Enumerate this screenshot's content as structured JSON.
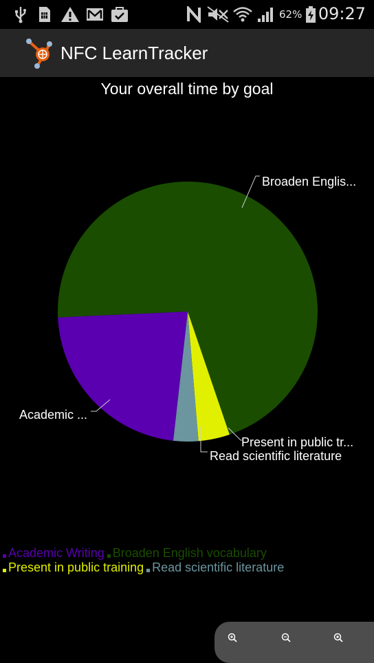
{
  "status_bar": {
    "battery_percent": "62%",
    "clock": "09:27",
    "icons": [
      "usb-icon",
      "sim-icon",
      "warning-icon",
      "gmail-icon",
      "task-icon",
      "nfc-icon",
      "mute-icon",
      "wifi-icon",
      "signal-icon",
      "battery-icon"
    ]
  },
  "app": {
    "title": "NFC LearnTracker",
    "logo_icon": "nfc-tracker-logo-icon"
  },
  "chart_data": {
    "type": "pie",
    "title": "Your overall time by goal",
    "slices": [
      {
        "name": "Broaden English vocabulary",
        "short_label": "Broaden Englis...",
        "value": 70.5,
        "color": "#1a4d00"
      },
      {
        "name": "Present in public training",
        "short_label": "Present in public tr...",
        "value": 3.9,
        "color": "#e1f000"
      },
      {
        "name": "Read scientific literature",
        "short_label": "Read scientific literature",
        "value": 3.1,
        "color": "#6b96a0"
      },
      {
        "name": "Academic Writing",
        "short_label": "Academic ...",
        "value": 22.5,
        "color": "#5a00b0"
      }
    ],
    "legend_rows": [
      [
        "Academic Writing",
        "Broaden English vocabulary"
      ],
      [
        "Present in public training",
        "Read scientific literature"
      ]
    ],
    "legend_colors": {
      "Academic Writing": "#5a00b0",
      "Broaden English vocabulary": "#1a4d00",
      "Present in public training": "#e1f000",
      "Read scientific literature": "#6b96a0"
    }
  },
  "zoom_controls": {
    "icons": [
      "zoom-in-icon",
      "zoom-out-icon",
      "zoom-reset-icon"
    ]
  }
}
